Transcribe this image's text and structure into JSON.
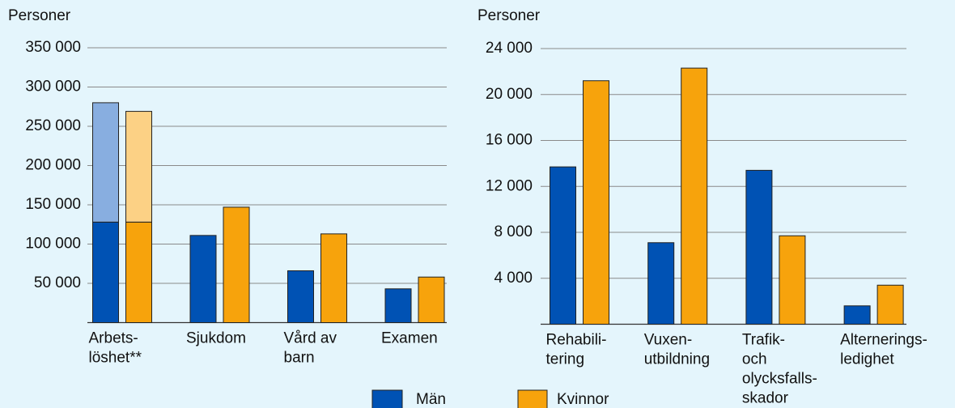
{
  "chart_data": [
    {
      "type": "bar",
      "ylabel": "Personer",
      "categories": [
        [
          "Arbets-",
          "löshet**"
        ],
        [
          "Sjukdom"
        ],
        [
          "Vård av",
          "barn"
        ],
        [
          "Examen"
        ]
      ],
      "series": [
        {
          "name": "Män",
          "color": "#0052b4",
          "values": [
            128000,
            111000,
            66000,
            43000
          ],
          "stack_values": [
            152000,
            null,
            null,
            null
          ],
          "stack_color": "#88aee0"
        },
        {
          "name": "Kvinnor",
          "color": "#f7a30c",
          "values": [
            128000,
            147000,
            113000,
            58000
          ],
          "stack_values": [
            141000,
            null,
            null,
            null
          ],
          "stack_color": "#fcd185"
        }
      ],
      "ylim": [
        0,
        350000
      ],
      "yticks": [
        {
          "value": 50000,
          "label": "50 000"
        },
        {
          "value": 100000,
          "label": "100 000"
        },
        {
          "value": 150000,
          "label": "150 000"
        },
        {
          "value": 200000,
          "label": "200 000"
        },
        {
          "value": 250000,
          "label": "250 000"
        },
        {
          "value": 300000,
          "label": "300 000"
        },
        {
          "value": 350000,
          "label": "350 000"
        }
      ],
      "grid": true
    },
    {
      "type": "bar",
      "ylabel": "Personer",
      "categories": [
        [
          "Rehabili-",
          "tering"
        ],
        [
          "Vuxen-",
          "utbildning"
        ],
        [
          "Trafik-",
          "och",
          "olycksfalls-",
          "skador"
        ],
        [
          "Alternerings-",
          "ledighet"
        ]
      ],
      "series": [
        {
          "color": "#0052b4",
          "values": [
            13700,
            7100,
            13400,
            1600
          ]
        },
        {
          "color": "#f7a30c",
          "values": [
            21200,
            22300,
            7700,
            3400
          ]
        }
      ],
      "ylim": [
        0,
        24000
      ],
      "yticks": [
        {
          "value": 4000,
          "label": "4 000"
        },
        {
          "value": 8000,
          "label": "8 000"
        },
        {
          "value": 12000,
          "label": "12 000"
        },
        {
          "value": 16000,
          "label": "16 000"
        },
        {
          "value": 20000,
          "label": "20 000"
        },
        {
          "value": 24000,
          "label": "24 000"
        }
      ],
      "grid": true
    }
  ]
}
